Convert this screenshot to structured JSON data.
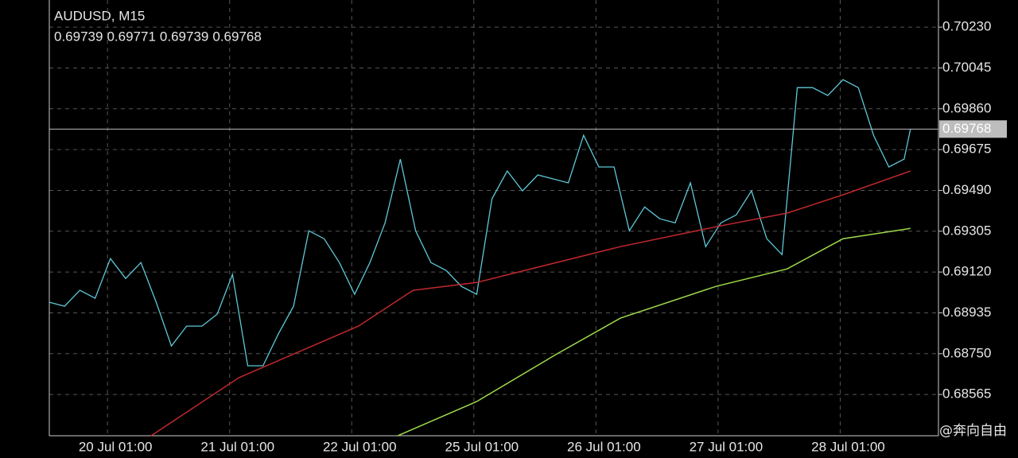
{
  "chart_data": {
    "type": "line",
    "title": "AUDUSD, M15",
    "ohlc": [
      0.69739,
      0.69771,
      0.69739,
      0.69768
    ],
    "last_price": {
      "value": 0.69768,
      "label": "0.69768"
    },
    "watermark": "@奔向自由",
    "xlim": [
      0,
      699
    ],
    "xticks": [
      {
        "value": 52,
        "label": "20 Jul 01:00"
      },
      {
        "value": 148,
        "label": "21 Jul 01:00"
      },
      {
        "value": 244,
        "label": "22 Jul 01:00"
      },
      {
        "value": 340,
        "label": "25 Jul 01:00"
      },
      {
        "value": 436,
        "label": "26 Jul 01:00"
      },
      {
        "value": 532,
        "label": "27 Jul 01:00"
      },
      {
        "value": 628,
        "label": "28 Jul 01:00"
      }
    ],
    "ylim": [
      0.68378,
      0.70353
    ],
    "yticks": [
      {
        "value": 0.7023,
        "label": "0.70230"
      },
      0.70045,
      {
        "value": 0.6986,
        "label": "0.69860"
      },
      0.69675,
      {
        "value": 0.6949,
        "label": "0.69490"
      },
      0.69305,
      {
        "value": 0.6912,
        "label": "0.69120"
      },
      0.68935,
      {
        "value": 0.6875,
        "label": "0.68750"
      },
      0.68565
    ],
    "grid": true,
    "series": [
      {
        "color": "#5ec8d8",
        "x": [
          0,
          12,
          24,
          36,
          48,
          60,
          72,
          84,
          96,
          108,
          120,
          132,
          144,
          156,
          168,
          180,
          192,
          204,
          216,
          228,
          240,
          252,
          264,
          276,
          288,
          300,
          312,
          324,
          336,
          348,
          360,
          372,
          384,
          396,
          408,
          420,
          432,
          444,
          456,
          468,
          480,
          492,
          504,
          516,
          528,
          540,
          552,
          564,
          576,
          588,
          600,
          612,
          624,
          636,
          648,
          660,
          672,
          677
        ],
        "values": [
          0.68983,
          0.68965,
          0.69037,
          0.69001,
          0.69181,
          0.69091,
          0.69163,
          0.68983,
          0.68785,
          0.68875,
          0.68875,
          0.68929,
          0.69109,
          0.68695,
          0.68695,
          0.68839,
          0.68965,
          0.69307,
          0.69271,
          0.69163,
          0.69019,
          0.69163,
          0.69343,
          0.69632,
          0.69307,
          0.69163,
          0.69127,
          0.69055,
          0.69019,
          0.69452,
          0.69578,
          0.69488,
          0.6956,
          0.69542,
          0.69524,
          0.6974,
          0.69596,
          0.69596,
          0.69307,
          0.69415,
          0.69361,
          0.69343,
          0.69524,
          0.69235,
          0.69343,
          0.69379,
          0.69488,
          0.69271,
          0.69199,
          0.69956,
          0.69956,
          0.6992,
          0.69992,
          0.69956,
          0.6974,
          0.69596,
          0.69632,
          0.69768
        ]
      },
      {
        "color": "#c0282d",
        "x": [
          80,
          149,
          243,
          286,
          336,
          449,
          524,
          580,
          624,
          677
        ],
        "values": [
          0.68378,
          0.68641,
          0.68875,
          0.69037,
          0.69073,
          0.69235,
          0.69325,
          0.69387,
          0.6947,
          0.69578
        ]
      },
      {
        "color": "#9edb4a",
        "x": [
          274,
          336,
          399,
          449,
          524,
          580,
          624,
          677
        ],
        "values": [
          0.68378,
          0.68533,
          0.68749,
          0.68911,
          0.69055,
          0.69134,
          0.69271,
          0.69318
        ]
      }
    ]
  }
}
